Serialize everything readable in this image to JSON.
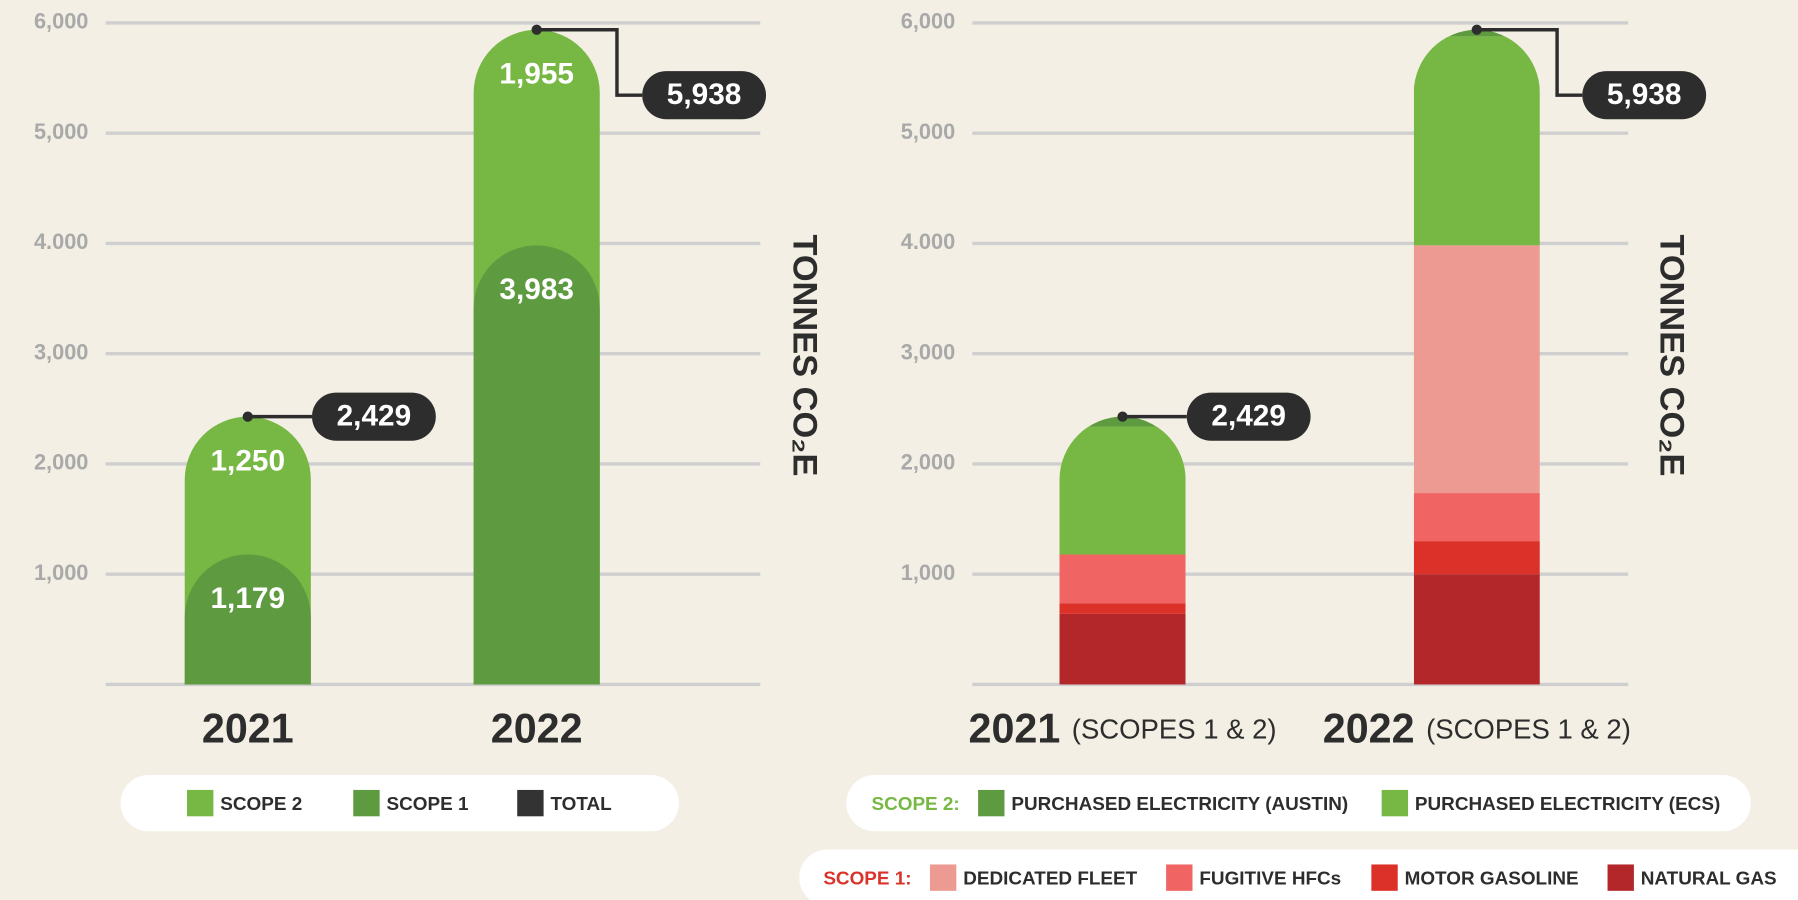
{
  "chart_data": [
    {
      "type": "bar",
      "stacked": true,
      "categories": [
        "2021",
        "2022"
      ],
      "series": [
        {
          "name": "SCOPE 2",
          "color": "#76b843",
          "values": [
            1250,
            1955
          ],
          "value_labels": [
            "1,250",
            "1,955"
          ]
        },
        {
          "name": "SCOPE 1",
          "color": "#5e9a3f",
          "values": [
            1179,
            3983
          ],
          "value_labels": [
            "1,179",
            "3,983"
          ]
        }
      ],
      "totals": [
        2429,
        5938
      ],
      "total_labels": [
        "2,429",
        "5,938"
      ],
      "total_name": "TOTAL",
      "total_color": "#333333",
      "y_label": "TONNES CO₂E",
      "ylim": [
        0,
        6000
      ],
      "yticks": [
        {
          "value": 1000,
          "label": "1,000"
        },
        {
          "value": 2000,
          "label": "2,000"
        },
        {
          "value": 3000,
          "label": "3,000"
        },
        {
          "value": 4000,
          "label": "4.000"
        },
        {
          "value": 5000,
          "label": "5,000"
        },
        {
          "value": 6000,
          "label": "6,000"
        }
      ],
      "grid": true
    },
    {
      "type": "grouped_stack",
      "categories": [
        "2021",
        "2022"
      ],
      "category_notes": [
        "(SCOPES 1 & 2)",
        "(SCOPES 1 & 2)"
      ],
      "groups": [
        {
          "label": "SCOPE 2:",
          "color": "#76b843",
          "series": [
            {
              "name": "PURCHASED ELECTRICITY (AUSTIN)",
              "color": "#5e9a3f",
              "values": [
                90,
                60
              ]
            },
            {
              "name": "PURCHASED ELECTRICITY (ECS)",
              "color": "#76b843",
              "values": [
                1160,
                1895
              ]
            }
          ]
        },
        {
          "label": "SCOPE 1:",
          "color": "#d9342b",
          "series": [
            {
              "name": "DEDICATED FLEET",
              "color": "#ec9a92",
              "values": [
                0,
                2247
              ]
            },
            {
              "name": "FUGITIVE HFCs",
              "color": "#f06464",
              "values": [
                444,
                436
              ]
            },
            {
              "name": "MOTOR GASOLINE",
              "color": "#dc3128",
              "values": [
                95,
                300
              ]
            },
            {
              "name": "NATURAL GAS",
              "color": "#b3262a",
              "values": [
                640,
                1000
              ]
            }
          ]
        }
      ],
      "totals": [
        2429,
        5938
      ],
      "total_labels": [
        "2,429",
        "5,938"
      ],
      "y_label": "TONNES CO₂E",
      "ylim": [
        0,
        6000
      ],
      "yticks": [
        {
          "value": 1000,
          "label": "1,000"
        },
        {
          "value": 2000,
          "label": "2,000"
        },
        {
          "value": 3000,
          "label": "3,000"
        },
        {
          "value": 4000,
          "label": "4.000"
        },
        {
          "value": 5000,
          "label": "5,000"
        },
        {
          "value": 6000,
          "label": "6,000"
        }
      ],
      "grid": true
    }
  ]
}
